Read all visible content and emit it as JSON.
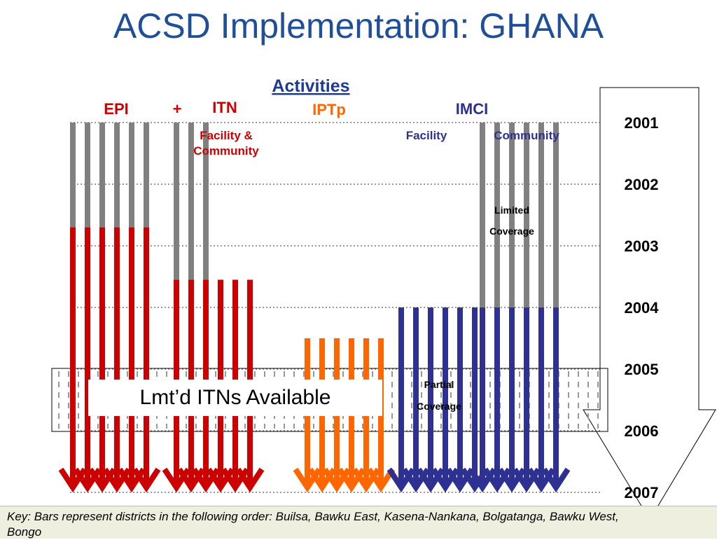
{
  "title": "ACSD Implementation: GHANA",
  "activities_heading": "Activities",
  "headers": {
    "epi": "EPI",
    "plus": "+",
    "itn": "ITN",
    "iptp": "IPTp",
    "imci": "IMCI",
    "itn_sub_line1": "Facility &",
    "itn_sub_line2": "Community",
    "imci_facility": "Facility",
    "imci_community": "Community"
  },
  "colors": {
    "title": "#1f4e9a",
    "epi": "#cc0000",
    "itn": "#cc0000",
    "iptp": "#ff6600",
    "imci": "#2e3192",
    "pre_start": "#808080"
  },
  "years": [
    "2001",
    "2002",
    "2003",
    "2004",
    "2005",
    "2006",
    "2007"
  ],
  "annotations": {
    "limited_line1": "Limited",
    "limited_line2": "Coverage",
    "partial_line1": "Partial",
    "partial_line2": "Coverage",
    "itn_note": "Lmt’d ITNs Available"
  },
  "key": "Key: Bars represent districts in the following order: Builsa, Bawku East, Kasena-Nankana, Bolgatanga, Bawku West, Bongo",
  "chart_data": {
    "type": "timeline",
    "time_axis": {
      "start": 2001,
      "end": 2007,
      "unit": "year"
    },
    "series": [
      {
        "name": "EPI",
        "districts": 6,
        "color": "#cc0000",
        "grey_from": 2001,
        "active_from": 2002.7,
        "until": 2007
      },
      {
        "name": "ITN",
        "districts": 6,
        "color": "#cc0000",
        "grey_from": 2001,
        "active_from": 2003.55,
        "until": 2007,
        "grey_districts": 3
      },
      {
        "name": "IPTp",
        "districts": 6,
        "color": "#ff6600",
        "active_from": 2004.5,
        "until": 2007
      },
      {
        "name": "IMCI Facility",
        "districts": 6,
        "color": "#2e3192",
        "active_from": 2004.0,
        "until": 2007
      },
      {
        "name": "IMCI Community",
        "districts": 6,
        "color": "#2e3192",
        "grey_from": 2001,
        "active_from": 2004.0,
        "until": 2007
      }
    ],
    "highlight_band": {
      "from": 2004.95,
      "to": 2006.0,
      "label": "Lmt’d ITNs Available"
    }
  }
}
